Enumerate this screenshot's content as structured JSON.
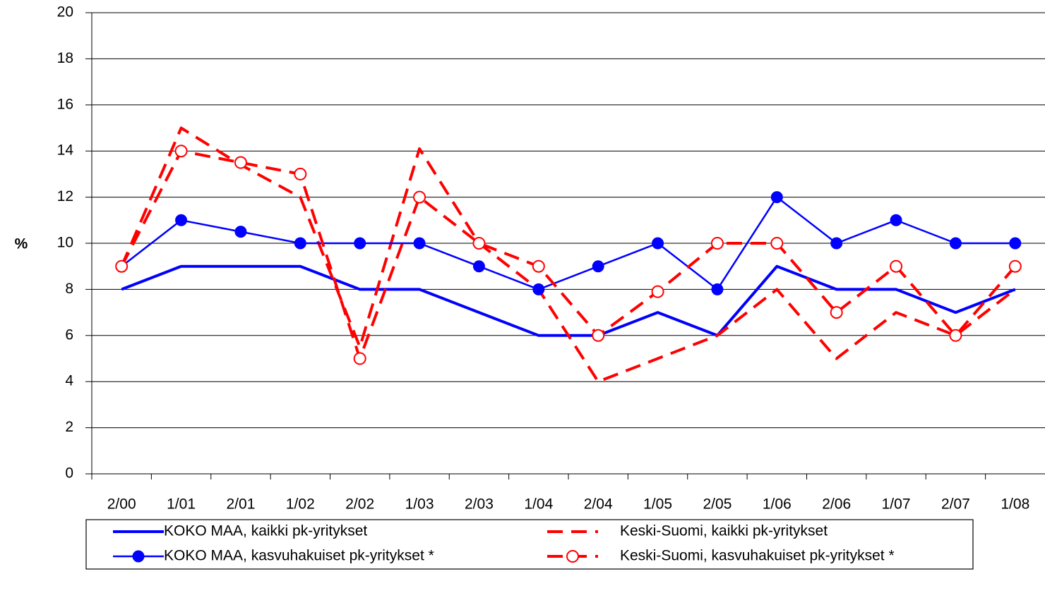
{
  "chart_data": {
    "type": "line",
    "y_label": "%",
    "categories": [
      "2/00",
      "1/01",
      "2/01",
      "1/02",
      "2/02",
      "1/03",
      "2/03",
      "1/04",
      "2/04",
      "1/05",
      "2/05",
      "1/06",
      "2/06",
      "1/07",
      "2/07",
      "1/08"
    ],
    "ylim": [
      0,
      20
    ],
    "yticks": [
      0,
      2,
      4,
      6,
      8,
      10,
      12,
      14,
      16,
      18,
      20
    ],
    "grid": true,
    "legend": "bottom",
    "series": [
      {
        "name": "KOKO MAA, kaikki pk-yritykset",
        "color": "#0000ff",
        "style": "solid",
        "weight": "thick",
        "marker": "none",
        "values": [
          8,
          9,
          9,
          9,
          8,
          8,
          7,
          6,
          6,
          7,
          6,
          9,
          8,
          8,
          7,
          8
        ]
      },
      {
        "name": "Keski-Suomi, kaikki pk-yritykset",
        "color": "#ff0000",
        "style": "dashed",
        "weight": "thick",
        "marker": "none",
        "values": [
          9,
          15,
          13.4,
          12,
          5.5,
          14.1,
          10,
          8,
          4,
          5,
          6,
          8,
          5,
          7,
          6,
          8
        ]
      },
      {
        "name": "KOKO MAA, kasvuhakuiset pk-yritykset *",
        "color": "#0000ff",
        "style": "solid",
        "weight": "thin",
        "marker": "filled-circle",
        "values": [
          9,
          11,
          10.5,
          10,
          10,
          10,
          9,
          8,
          9,
          10,
          8,
          12,
          10,
          11,
          10,
          10
        ]
      },
      {
        "name": "Keski-Suomi, kasvuhakuiset pk-yritykset *",
        "color": "#ff0000",
        "style": "dashed",
        "weight": "thick",
        "marker": "open-circle",
        "values": [
          9,
          14,
          13.5,
          13,
          5,
          12,
          10,
          9,
          6,
          7.9,
          10,
          10,
          7,
          9,
          6,
          9
        ]
      }
    ]
  }
}
